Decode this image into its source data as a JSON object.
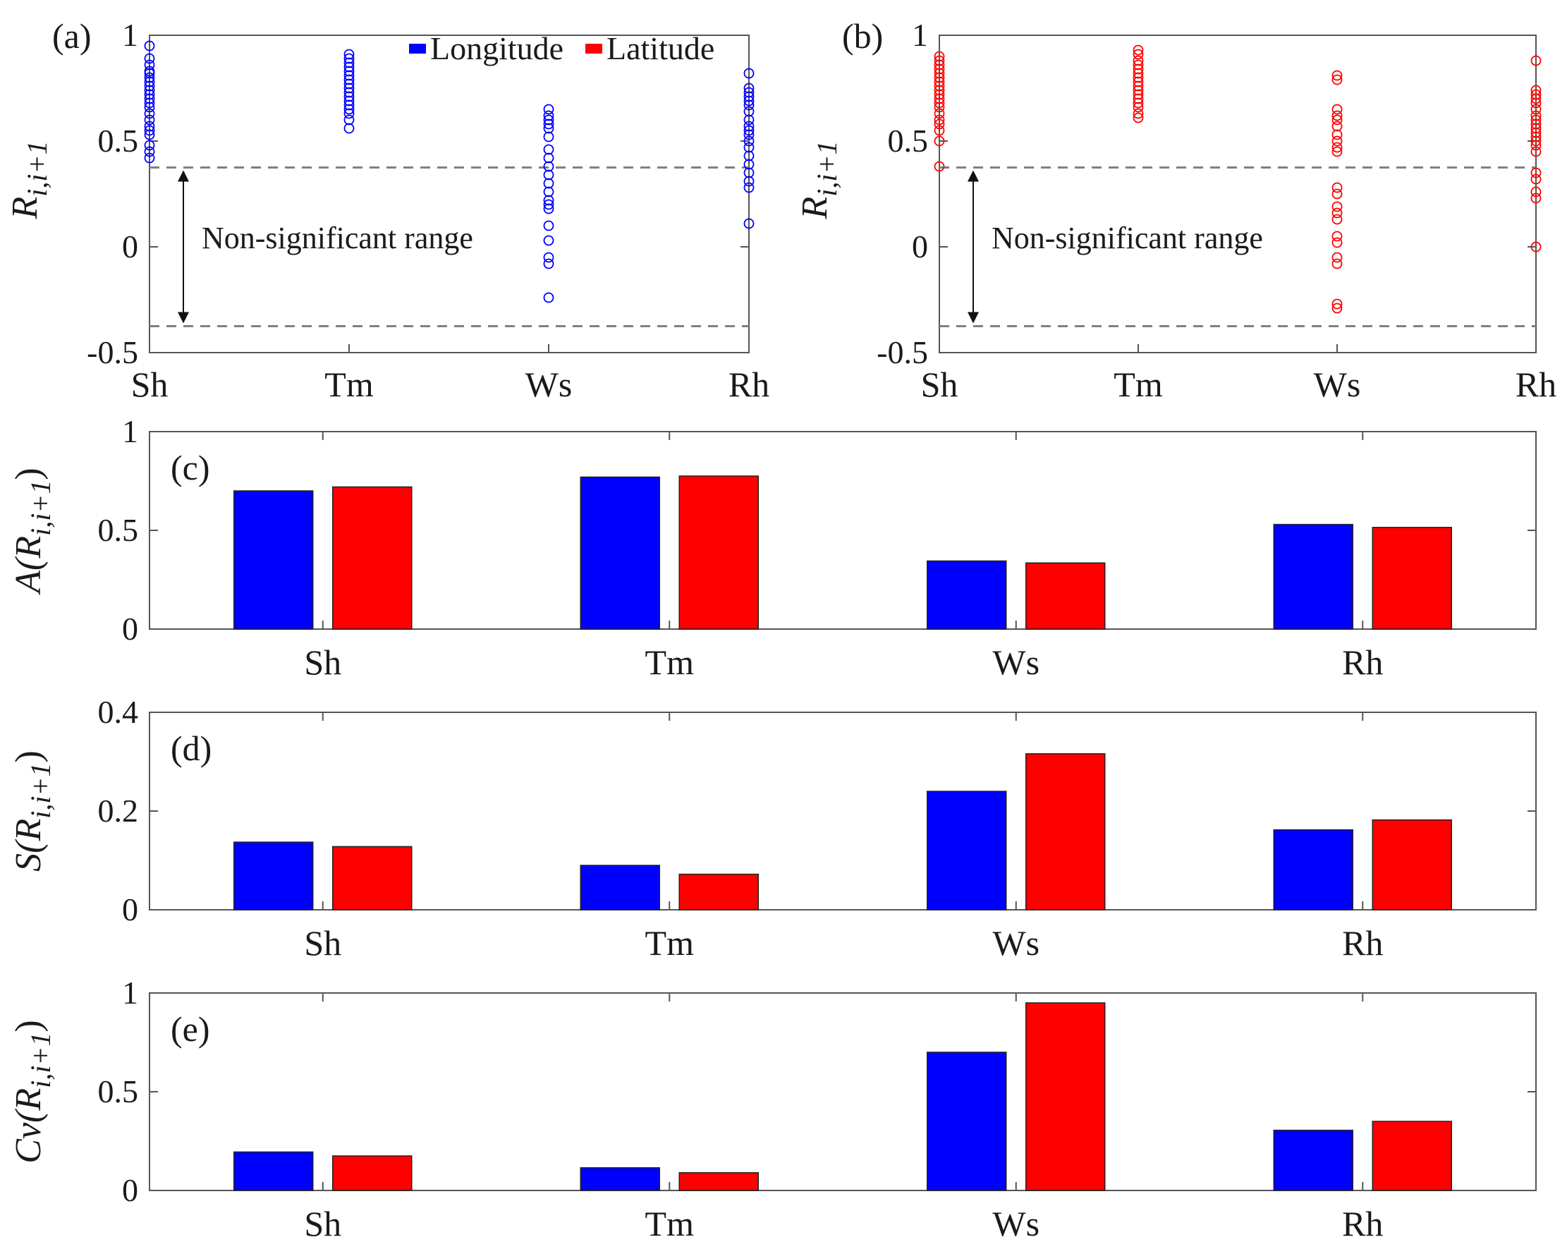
{
  "colors": {
    "longitude": "#0000ff",
    "latitude": "#ff0000",
    "axis": "#555555",
    "text": "#1a1a1a",
    "threshold_line": "#808080"
  },
  "chart_data": [
    {
      "id": "a",
      "type": "scatter",
      "panel_label": "(a)",
      "ylabel": "R_{i,i+1}",
      "ylabel_main": "R",
      "ylabel_sub": "i,i+1",
      "ylim": [
        -0.5,
        1
      ],
      "yticks": [
        -0.5,
        0,
        0.5,
        1
      ],
      "ytick_labels": [
        "-0.5",
        "0",
        "0.5",
        "1"
      ],
      "categories": [
        "Sh",
        "Tm",
        "Ws",
        "Rh"
      ],
      "series": [
        {
          "name": "Longitude",
          "color": "#0000ff",
          "values": {
            "Sh": [
              0.95,
              0.89,
              0.86,
              0.83,
              0.82,
              0.8,
              0.78,
              0.76,
              0.74,
              0.72,
              0.7,
              0.68,
              0.66,
              0.63,
              0.6,
              0.57,
              0.55,
              0.53,
              0.48,
              0.45,
              0.42
            ],
            "Tm": [
              0.91,
              0.89,
              0.87,
              0.85,
              0.83,
              0.81,
              0.79,
              0.77,
              0.75,
              0.73,
              0.71,
              0.69,
              0.67,
              0.65,
              0.63,
              0.6,
              0.56
            ],
            "Ws": [
              0.65,
              0.62,
              0.6,
              0.58,
              0.56,
              0.52,
              0.46,
              0.42,
              0.38,
              0.34,
              0.3,
              0.26,
              0.22,
              0.2,
              0.18,
              0.1,
              0.03,
              -0.05,
              -0.08,
              -0.24
            ],
            "Rh": [
              0.82,
              0.75,
              0.73,
              0.71,
              0.69,
              0.67,
              0.64,
              0.6,
              0.57,
              0.55,
              0.53,
              0.5,
              0.47,
              0.43,
              0.39,
              0.35,
              0.31,
              0.28,
              0.11
            ]
          }
        }
      ],
      "legend": [
        {
          "name": "Longitude",
          "color": "#0000ff"
        },
        {
          "name": "Latitude",
          "color": "#ff0000"
        }
      ],
      "legend_position": "top",
      "threshold_lines": [
        0.375,
        -0.375
      ],
      "annotation": "Non-significant range"
    },
    {
      "id": "b",
      "type": "scatter",
      "panel_label": "(b)",
      "ylabel": "R_{i,i+1}",
      "ylabel_main": "R",
      "ylabel_sub": "i,i+1",
      "ylim": [
        -0.5,
        1
      ],
      "yticks": [
        -0.5,
        0,
        0.5,
        1
      ],
      "ytick_labels": [
        "-0.5",
        "0",
        "0.5",
        "1"
      ],
      "categories": [
        "Sh",
        "Tm",
        "Ws",
        "Rh"
      ],
      "series": [
        {
          "name": "Latitude",
          "color": "#ff0000",
          "values": {
            "Sh": [
              0.9,
              0.88,
              0.86,
              0.84,
              0.82,
              0.8,
              0.78,
              0.76,
              0.74,
              0.72,
              0.7,
              0.68,
              0.66,
              0.63,
              0.6,
              0.58,
              0.55,
              0.5,
              0.38
            ],
            "Tm": [
              0.93,
              0.91,
              0.88,
              0.86,
              0.84,
              0.82,
              0.8,
              0.78,
              0.76,
              0.74,
              0.72,
              0.7,
              0.68,
              0.66,
              0.63,
              0.61
            ],
            "Ws": [
              0.81,
              0.79,
              0.65,
              0.62,
              0.6,
              0.57,
              0.53,
              0.5,
              0.47,
              0.45,
              0.28,
              0.25,
              0.19,
              0.16,
              0.13,
              0.05,
              0.02,
              -0.05,
              -0.08,
              -0.27,
              -0.29
            ],
            "Rh": [
              0.88,
              0.74,
              0.72,
              0.7,
              0.68,
              0.65,
              0.62,
              0.6,
              0.58,
              0.56,
              0.54,
              0.52,
              0.5,
              0.48,
              0.45,
              0.35,
              0.32,
              0.26,
              0.23,
              0.0
            ]
          }
        }
      ],
      "threshold_lines": [
        0.375,
        -0.375
      ],
      "annotation": "Non-significant range"
    },
    {
      "id": "c",
      "type": "bar",
      "panel_label": "(c)",
      "ylabel": "A(R_{i,i+1})",
      "ylabel_prefix": "A(",
      "ylabel_main": "R",
      "ylabel_sub": "i,i+1",
      "ylabel_suffix": ")",
      "ylim": [
        0,
        1
      ],
      "yticks": [
        0,
        0.5,
        1
      ],
      "ytick_labels": [
        "0",
        "0.5",
        "1"
      ],
      "categories": [
        "Sh",
        "Tm",
        "Ws",
        "Rh"
      ],
      "series": [
        {
          "name": "Longitude",
          "color": "#0000ff",
          "values": [
            0.7,
            0.77,
            0.345,
            0.53
          ]
        },
        {
          "name": "Latitude",
          "color": "#ff0000",
          "values": [
            0.72,
            0.775,
            0.335,
            0.515
          ]
        }
      ]
    },
    {
      "id": "d",
      "type": "bar",
      "panel_label": "(d)",
      "ylabel": "S(R_{i,i+1})",
      "ylabel_prefix": "S(",
      "ylabel_main": "R",
      "ylabel_sub": "i,i+1",
      "ylabel_suffix": ")",
      "ylim": [
        0,
        0.4
      ],
      "yticks": [
        0,
        0.2,
        0.4
      ],
      "ytick_labels": [
        "0",
        "0.2",
        "0.4"
      ],
      "categories": [
        "Sh",
        "Tm",
        "Ws",
        "Rh"
      ],
      "series": [
        {
          "name": "Longitude",
          "color": "#0000ff",
          "values": [
            0.137,
            0.09,
            0.24,
            0.162
          ]
        },
        {
          "name": "Latitude",
          "color": "#ff0000",
          "values": [
            0.128,
            0.072,
            0.316,
            0.182
          ]
        }
      ]
    },
    {
      "id": "e",
      "type": "bar",
      "panel_label": "(e)",
      "ylabel": "Cv(R_{i,i+1})",
      "ylabel_prefix": "Cv(",
      "ylabel_main": "R",
      "ylabel_sub": "i,i+1",
      "ylabel_suffix": ")",
      "ylim": [
        0,
        1
      ],
      "yticks": [
        0,
        0.5,
        1
      ],
      "ytick_labels": [
        "0",
        "0.5",
        "1"
      ],
      "categories": [
        "Sh",
        "Tm",
        "Ws",
        "Rh"
      ],
      "series": [
        {
          "name": "Longitude",
          "color": "#0000ff",
          "values": [
            0.195,
            0.115,
            0.7,
            0.305
          ]
        },
        {
          "name": "Latitude",
          "color": "#ff0000",
          "values": [
            0.175,
            0.09,
            0.95,
            0.35
          ]
        }
      ]
    }
  ]
}
